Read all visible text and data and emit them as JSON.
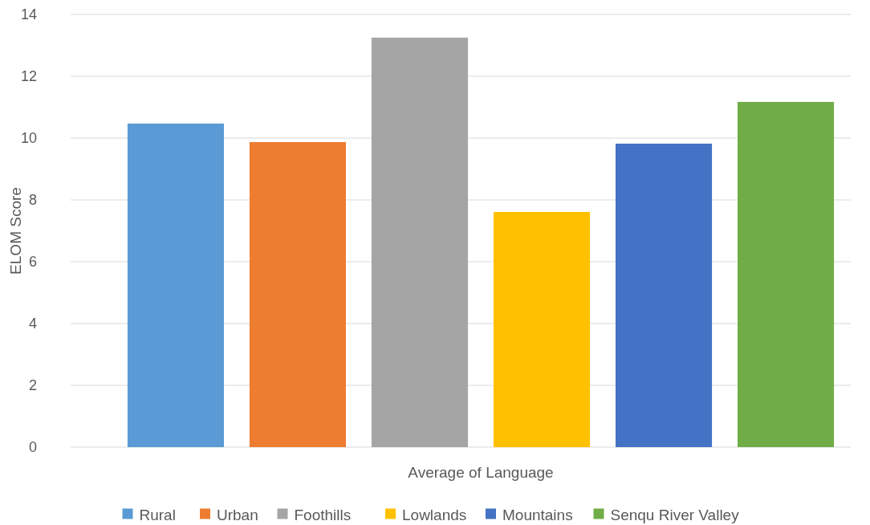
{
  "chart_data": {
    "type": "bar",
    "ylabel": "ELOM Score",
    "categories": [
      "Average of Language"
    ],
    "series": [
      {
        "name": "Rural",
        "color": "#5b9bd5",
        "values": [
          10.47
        ]
      },
      {
        "name": "Urban",
        "color": "#ed7d31",
        "values": [
          9.87
        ]
      },
      {
        "name": "Foothills",
        "color": "#a5a5a5",
        "values": [
          13.25
        ]
      },
      {
        "name": "Lowlands",
        "color": "#ffc000",
        "values": [
          7.61
        ]
      },
      {
        "name": "Mountains",
        "color": "#4472c4",
        "values": [
          9.82
        ]
      },
      {
        "name": "Senqu River Valley",
        "color": "#70ad47",
        "values": [
          11.17
        ]
      }
    ],
    "ylim": [
      0,
      14
    ],
    "yticks": [
      0,
      2,
      4,
      6,
      8,
      10,
      12,
      14
    ],
    "grid": "y",
    "legend": "bottom"
  }
}
